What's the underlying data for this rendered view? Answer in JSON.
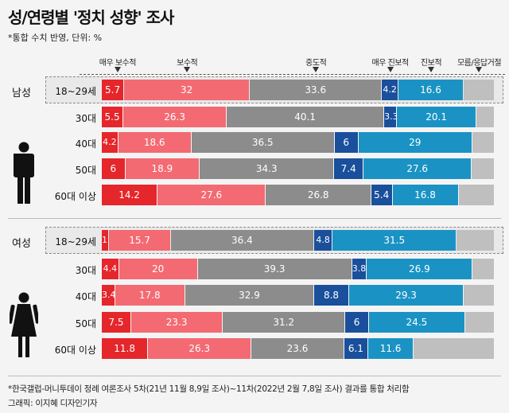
{
  "title": "성/연령별 '정치 성향' 조사",
  "subtitle": "*통합 수치 반영, 단위: %",
  "chart_data": {
    "type": "bar",
    "stacked": true,
    "orientation": "horizontal",
    "title": "성/연령별 '정치 성향' 조사",
    "unit": "%",
    "legend": [
      "매우 보수적",
      "보수적",
      "중도적",
      "매우 진보적",
      "진보적",
      "모름/응답거절"
    ],
    "colors": {
      "매우 보수적": "#e5262b",
      "보수적": "#f36a72",
      "중도적": "#8c8c8c",
      "매우 진보적": "#1a4f9c",
      "진보적": "#1a93c4",
      "모름/응답거절": "#bfbfbf"
    },
    "groups": [
      {
        "name": "남성",
        "rows": [
          {
            "label": "18~29세",
            "highlight": true,
            "values": [
              5.7,
              32,
              33.6,
              4.2,
              16.6,
              7.9
            ]
          },
          {
            "label": "30대",
            "values": [
              5.5,
              26.3,
              40.1,
              3.3,
              20.1,
              4.7
            ]
          },
          {
            "label": "40대",
            "values": [
              4.2,
              18.6,
              36.5,
              6,
              29,
              5.7
            ]
          },
          {
            "label": "50대",
            "values": [
              6,
              18.9,
              34.3,
              7.4,
              27.6,
              5.8
            ]
          },
          {
            "label": "60대 이상",
            "values": [
              14.2,
              27.6,
              26.8,
              5.4,
              16.8,
              9.2
            ]
          }
        ]
      },
      {
        "name": "여성",
        "rows": [
          {
            "label": "18~29세",
            "highlight": true,
            "values": [
              1.9,
              15.7,
              36.4,
              4.8,
              31.5,
              9.7
            ]
          },
          {
            "label": "30대",
            "values": [
              4.4,
              20,
              39.3,
              3.8,
              26.9,
              5.6
            ]
          },
          {
            "label": "40대",
            "values": [
              3.4,
              17.8,
              32.9,
              8.8,
              29.3,
              7.8
            ]
          },
          {
            "label": "50대",
            "values": [
              7.5,
              23.3,
              31.2,
              6,
              24.5,
              7.5
            ]
          },
          {
            "label": "60대 이상",
            "values": [
              11.8,
              26.3,
              23.6,
              6.1,
              11.6,
              20.6
            ]
          }
        ]
      }
    ]
  },
  "footnote": "*한국갤럽-머니투데이 정례 여론조사 5차(21년 11월 8,9일 조사)~11차(2022년 2월 7,8일 조사) 결과를 통합 처리함",
  "credit": "그래픽: 이지혜 디자인기자"
}
